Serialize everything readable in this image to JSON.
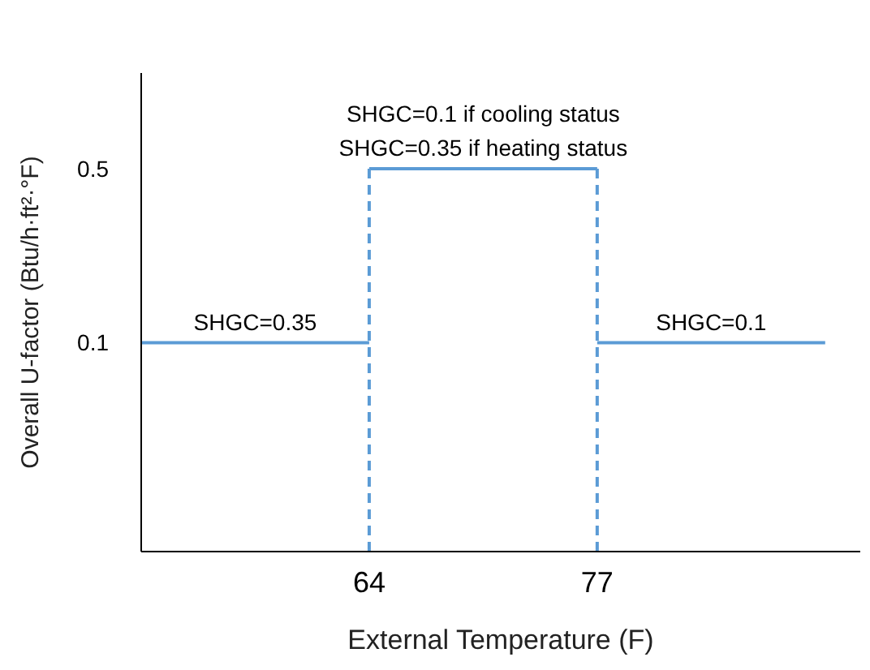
{
  "chart_data": {
    "type": "line",
    "xlabel": "External Temperature (F)",
    "ylabel": "Overall U-factor (Btu/h·ft²·°F)",
    "xlim": [
      51,
      92
    ],
    "xticks": [
      64,
      77
    ],
    "ylim": [
      -0.38,
      0.72
    ],
    "yticks": [
      0.1,
      0.5
    ],
    "grid": false,
    "marker": "none",
    "line_style": "solid",
    "series": [
      {
        "color": "#5b9bd5",
        "x": [
          51,
          64
        ],
        "values": [
          0.1,
          0.1
        ]
      },
      {
        "color": "#5b9bd5",
        "x": [
          64,
          77
        ],
        "values": [
          0.5,
          0.5
        ]
      },
      {
        "color": "#5b9bd5",
        "x": [
          77,
          90
        ],
        "values": [
          0.1,
          0.1
        ]
      }
    ],
    "ref_lines": [
      {
        "axis": "x",
        "value": 64,
        "color": "#5b9bd5",
        "line_style": "dashed"
      },
      {
        "axis": "x",
        "value": 77,
        "color": "#5b9bd5",
        "line_style": "dashed"
      }
    ],
    "annotations": [
      {
        "text": "SHGC=0.35",
        "x": 57.5,
        "y": 0.1
      },
      {
        "text": "SHGC=0.1 if cooling status",
        "x": 70.5,
        "y": 0.5
      },
      {
        "text": "SHGC=0.35 if heating status",
        "x": 70.5,
        "y": 0.5
      },
      {
        "text": "SHGC=0.1",
        "x": 83.5,
        "y": 0.1
      }
    ]
  }
}
